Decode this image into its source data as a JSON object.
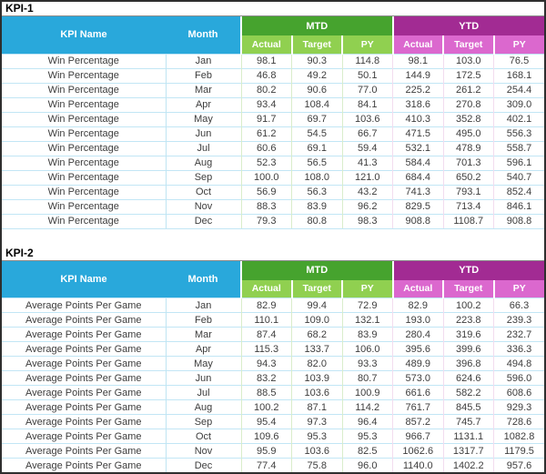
{
  "colors": {
    "header_cyan": "#29a8db",
    "mtd_dark_green": "#46a32e",
    "mtd_light_green": "#90d050",
    "ytd_dark_magenta": "#a22b93",
    "ytd_light_magenta": "#db68ce",
    "row_border_blue": "#c2e6f5",
    "frame_border": "#2e2e2e"
  },
  "tables": [
    {
      "section_label": "KPI-1",
      "headers": {
        "kpi_name": "KPI Name",
        "month": "Month",
        "mtd": "MTD",
        "ytd": "YTD",
        "sub": [
          "Actual",
          "Target",
          "PY"
        ]
      },
      "rows": [
        {
          "kpi": "Win Percentage",
          "month": "Jan",
          "mtd": [
            "98.1",
            "90.3",
            "114.8"
          ],
          "ytd": [
            "98.1",
            "103.0",
            "76.5"
          ]
        },
        {
          "kpi": "Win Percentage",
          "month": "Feb",
          "mtd": [
            "46.8",
            "49.2",
            "50.1"
          ],
          "ytd": [
            "144.9",
            "172.5",
            "168.1"
          ]
        },
        {
          "kpi": "Win Percentage",
          "month": "Mar",
          "mtd": [
            "80.2",
            "90.6",
            "77.0"
          ],
          "ytd": [
            "225.2",
            "261.2",
            "254.4"
          ]
        },
        {
          "kpi": "Win Percentage",
          "month": "Apr",
          "mtd": [
            "93.4",
            "108.4",
            "84.1"
          ],
          "ytd": [
            "318.6",
            "270.8",
            "309.0"
          ]
        },
        {
          "kpi": "Win Percentage",
          "month": "May",
          "mtd": [
            "91.7",
            "69.7",
            "103.6"
          ],
          "ytd": [
            "410.3",
            "352.8",
            "402.1"
          ]
        },
        {
          "kpi": "Win Percentage",
          "month": "Jun",
          "mtd": [
            "61.2",
            "54.5",
            "66.7"
          ],
          "ytd": [
            "471.5",
            "495.0",
            "556.3"
          ]
        },
        {
          "kpi": "Win Percentage",
          "month": "Jul",
          "mtd": [
            "60.6",
            "69.1",
            "59.4"
          ],
          "ytd": [
            "532.1",
            "478.9",
            "558.7"
          ]
        },
        {
          "kpi": "Win Percentage",
          "month": "Aug",
          "mtd": [
            "52.3",
            "56.5",
            "41.3"
          ],
          "ytd": [
            "584.4",
            "701.3",
            "596.1"
          ]
        },
        {
          "kpi": "Win Percentage",
          "month": "Sep",
          "mtd": [
            "100.0",
            "108.0",
            "121.0"
          ],
          "ytd": [
            "684.4",
            "650.2",
            "540.7"
          ]
        },
        {
          "kpi": "Win Percentage",
          "month": "Oct",
          "mtd": [
            "56.9",
            "56.3",
            "43.2"
          ],
          "ytd": [
            "741.3",
            "793.1",
            "852.4"
          ]
        },
        {
          "kpi": "Win Percentage",
          "month": "Nov",
          "mtd": [
            "88.3",
            "83.9",
            "96.2"
          ],
          "ytd": [
            "829.5",
            "713.4",
            "846.1"
          ]
        },
        {
          "kpi": "Win Percentage",
          "month": "Dec",
          "mtd": [
            "79.3",
            "80.8",
            "98.3"
          ],
          "ytd": [
            "908.8",
            "1108.7",
            "908.8"
          ]
        }
      ]
    },
    {
      "section_label": "KPI-2",
      "headers": {
        "kpi_name": "KPI Name",
        "month": "Month",
        "mtd": "MTD",
        "ytd": "YTD",
        "sub": [
          "Actual",
          "Target",
          "PY"
        ]
      },
      "rows": [
        {
          "kpi": "Average Points Per Game",
          "month": "Jan",
          "mtd": [
            "82.9",
            "99.4",
            "72.9"
          ],
          "ytd": [
            "82.9",
            "100.2",
            "66.3"
          ]
        },
        {
          "kpi": "Average Points Per Game",
          "month": "Feb",
          "mtd": [
            "110.1",
            "109.0",
            "132.1"
          ],
          "ytd": [
            "193.0",
            "223.8",
            "239.3"
          ]
        },
        {
          "kpi": "Average Points Per Game",
          "month": "Mar",
          "mtd": [
            "87.4",
            "68.2",
            "83.9"
          ],
          "ytd": [
            "280.4",
            "319.6",
            "232.7"
          ]
        },
        {
          "kpi": "Average Points Per Game",
          "month": "Apr",
          "mtd": [
            "115.3",
            "133.7",
            "106.0"
          ],
          "ytd": [
            "395.6",
            "399.6",
            "336.3"
          ]
        },
        {
          "kpi": "Average Points Per Game",
          "month": "May",
          "mtd": [
            "94.3",
            "82.0",
            "93.3"
          ],
          "ytd": [
            "489.9",
            "396.8",
            "494.8"
          ]
        },
        {
          "kpi": "Average Points Per Game",
          "month": "Jun",
          "mtd": [
            "83.2",
            "103.9",
            "80.7"
          ],
          "ytd": [
            "573.0",
            "624.6",
            "596.0"
          ]
        },
        {
          "kpi": "Average Points Per Game",
          "month": "Jul",
          "mtd": [
            "88.5",
            "103.6",
            "100.9"
          ],
          "ytd": [
            "661.6",
            "582.2",
            "608.6"
          ]
        },
        {
          "kpi": "Average Points Per Game",
          "month": "Aug",
          "mtd": [
            "100.2",
            "87.1",
            "114.2"
          ],
          "ytd": [
            "761.7",
            "845.5",
            "929.3"
          ]
        },
        {
          "kpi": "Average Points Per Game",
          "month": "Sep",
          "mtd": [
            "95.4",
            "97.3",
            "96.4"
          ],
          "ytd": [
            "857.2",
            "745.7",
            "728.6"
          ]
        },
        {
          "kpi": "Average Points Per Game",
          "month": "Oct",
          "mtd": [
            "109.6",
            "95.3",
            "95.3"
          ],
          "ytd": [
            "966.7",
            "1131.1",
            "1082.8"
          ]
        },
        {
          "kpi": "Average Points Per Game",
          "month": "Nov",
          "mtd": [
            "95.9",
            "103.6",
            "82.5"
          ],
          "ytd": [
            "1062.6",
            "1317.7",
            "1179.5"
          ]
        },
        {
          "kpi": "Average Points Per Game",
          "month": "Dec",
          "mtd": [
            "77.4",
            "75.8",
            "96.0"
          ],
          "ytd": [
            "1140.0",
            "1402.2",
            "957.6"
          ]
        }
      ]
    }
  ],
  "chart_data": [
    {
      "type": "table",
      "title": "KPI-1",
      "columns": [
        "KPI Name",
        "Month",
        "MTD Actual",
        "MTD Target",
        "MTD PY",
        "YTD Actual",
        "YTD Target",
        "YTD PY"
      ],
      "rows": [
        [
          "Win Percentage",
          "Jan",
          98.1,
          90.3,
          114.8,
          98.1,
          103.0,
          76.5
        ],
        [
          "Win Percentage",
          "Feb",
          46.8,
          49.2,
          50.1,
          144.9,
          172.5,
          168.1
        ],
        [
          "Win Percentage",
          "Mar",
          80.2,
          90.6,
          77.0,
          225.2,
          261.2,
          254.4
        ],
        [
          "Win Percentage",
          "Apr",
          93.4,
          108.4,
          84.1,
          318.6,
          270.8,
          309.0
        ],
        [
          "Win Percentage",
          "May",
          91.7,
          69.7,
          103.6,
          410.3,
          352.8,
          402.1
        ],
        [
          "Win Percentage",
          "Jun",
          61.2,
          54.5,
          66.7,
          471.5,
          495.0,
          556.3
        ],
        [
          "Win Percentage",
          "Jul",
          60.6,
          69.1,
          59.4,
          532.1,
          478.9,
          558.7
        ],
        [
          "Win Percentage",
          "Aug",
          52.3,
          56.5,
          41.3,
          584.4,
          701.3,
          596.1
        ],
        [
          "Win Percentage",
          "Sep",
          100.0,
          108.0,
          121.0,
          684.4,
          650.2,
          540.7
        ],
        [
          "Win Percentage",
          "Oct",
          56.9,
          56.3,
          43.2,
          741.3,
          793.1,
          852.4
        ],
        [
          "Win Percentage",
          "Nov",
          88.3,
          83.9,
          96.2,
          829.5,
          713.4,
          846.1
        ],
        [
          "Win Percentage",
          "Dec",
          79.3,
          80.8,
          98.3,
          908.8,
          1108.7,
          908.8
        ]
      ]
    },
    {
      "type": "table",
      "title": "KPI-2",
      "columns": [
        "KPI Name",
        "Month",
        "MTD Actual",
        "MTD Target",
        "MTD PY",
        "YTD Actual",
        "YTD Target",
        "YTD PY"
      ],
      "rows": [
        [
          "Average Points Per Game",
          "Jan",
          82.9,
          99.4,
          72.9,
          82.9,
          100.2,
          66.3
        ],
        [
          "Average Points Per Game",
          "Feb",
          110.1,
          109.0,
          132.1,
          193.0,
          223.8,
          239.3
        ],
        [
          "Average Points Per Game",
          "Mar",
          87.4,
          68.2,
          83.9,
          280.4,
          319.6,
          232.7
        ],
        [
          "Average Points Per Game",
          "Apr",
          115.3,
          133.7,
          106.0,
          395.6,
          399.6,
          336.3
        ],
        [
          "Average Points Per Game",
          "May",
          94.3,
          82.0,
          93.3,
          489.9,
          396.8,
          494.8
        ],
        [
          "Average Points Per Game",
          "Jun",
          83.2,
          103.9,
          80.7,
          573.0,
          624.6,
          596.0
        ],
        [
          "Average Points Per Game",
          "Jul",
          88.5,
          103.6,
          100.9,
          661.6,
          582.2,
          608.6
        ],
        [
          "Average Points Per Game",
          "Aug",
          100.2,
          87.1,
          114.2,
          761.7,
          845.5,
          929.3
        ],
        [
          "Average Points Per Game",
          "Sep",
          95.4,
          97.3,
          96.4,
          857.2,
          745.7,
          728.6
        ],
        [
          "Average Points Per Game",
          "Oct",
          109.6,
          95.3,
          95.3,
          966.7,
          1131.1,
          1082.8
        ],
        [
          "Average Points Per Game",
          "Nov",
          95.9,
          103.6,
          82.5,
          1062.6,
          1317.7,
          1179.5
        ],
        [
          "Average Points Per Game",
          "Dec",
          77.4,
          75.8,
          96.0,
          1140.0,
          1402.2,
          957.6
        ]
      ]
    }
  ]
}
